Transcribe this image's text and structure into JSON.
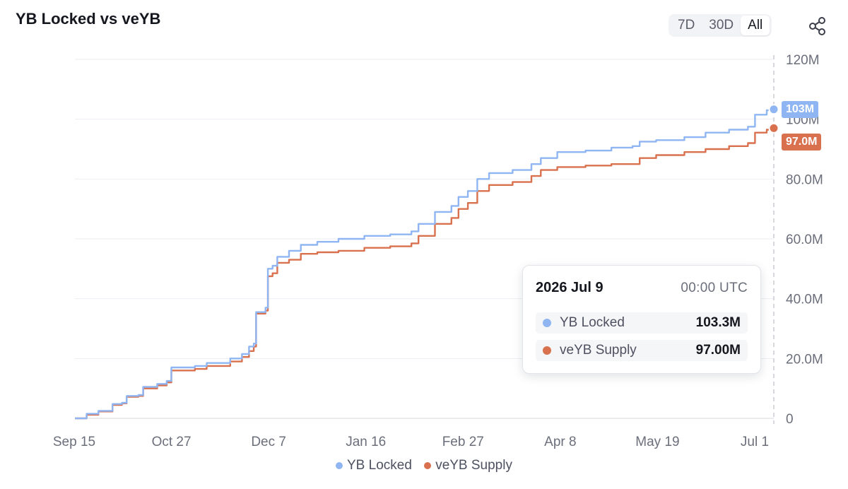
{
  "colors": {
    "yb_locked": "#8fb6f2",
    "veyb_supply": "#d9714f",
    "grid": "#eceef2",
    "axis": "#d7d9df"
  },
  "header": {
    "title": "YB Locked vs veYB"
  },
  "range_buttons": [
    {
      "label": "7D",
      "active": false
    },
    {
      "label": "30D",
      "active": false
    },
    {
      "label": "All",
      "active": true
    }
  ],
  "share": {
    "icon": "share-icon"
  },
  "tooltip": {
    "date": "2026 Jul 9",
    "time": "00:00  UTC",
    "rows": [
      {
        "name": "YB Locked",
        "value": "103.3M"
      },
      {
        "name": "veYB Supply",
        "value": "97.00M"
      }
    ]
  },
  "end_badges": {
    "yb_locked": "103M",
    "veyb_supply": "97.0M"
  },
  "legend": [
    "YB Locked",
    "veYB Supply"
  ],
  "chart_data": {
    "type": "line",
    "title": "YB Locked vs veYB",
    "xlabel": "",
    "ylabel": "",
    "x_tick_labels": [
      "Sep 15",
      "Oct 27",
      "Dec 7",
      "Jan 16",
      "Feb 27",
      "Apr 8",
      "May 19",
      "Jul 1"
    ],
    "y_tick_labels": [
      "0",
      "20.0M",
      "40.0M",
      "60.0M",
      "80.0M",
      "100M",
      "120M"
    ],
    "y_ticks": [
      0,
      20,
      40,
      60,
      80,
      100,
      120
    ],
    "ylim": [
      0,
      120
    ],
    "y_unit": "M",
    "x_range": [
      "2025-09-15",
      "2026-07-09"
    ],
    "legend_position": "bottom",
    "grid": true,
    "series": [
      {
        "name": "YB Locked",
        "points": [
          [
            "2025-09-15",
            0
          ],
          [
            "2025-09-20",
            1.5
          ],
          [
            "2025-09-25",
            2.5
          ],
          [
            "2025-10-01",
            4.8
          ],
          [
            "2025-10-05",
            5.2
          ],
          [
            "2025-10-07",
            7.5
          ],
          [
            "2025-10-12",
            7.8
          ],
          [
            "2025-10-14",
            10.5
          ],
          [
            "2025-10-20",
            11.5
          ],
          [
            "2025-10-24",
            12.5
          ],
          [
            "2025-10-26",
            17
          ],
          [
            "2025-11-05",
            17.5
          ],
          [
            "2025-11-10",
            18.5
          ],
          [
            "2025-11-20",
            20
          ],
          [
            "2025-11-25",
            21.5
          ],
          [
            "2025-11-28",
            24
          ],
          [
            "2025-11-30",
            25
          ],
          [
            "2025-12-01",
            35.5
          ],
          [
            "2025-12-05",
            37
          ],
          [
            "2025-12-06",
            50
          ],
          [
            "2025-12-08",
            51
          ],
          [
            "2025-12-10",
            54
          ],
          [
            "2025-12-15",
            56
          ],
          [
            "2025-12-20",
            58
          ],
          [
            "2025-12-27",
            59
          ],
          [
            "2026-01-05",
            60
          ],
          [
            "2026-01-16",
            61
          ],
          [
            "2026-01-27",
            61.5
          ],
          [
            "2026-02-05",
            62.5
          ],
          [
            "2026-02-08",
            65
          ],
          [
            "2026-02-15",
            69
          ],
          [
            "2026-02-22",
            71
          ],
          [
            "2026-02-25",
            74
          ],
          [
            "2026-03-01",
            76
          ],
          [
            "2026-03-05",
            80
          ],
          [
            "2026-03-10",
            82
          ],
          [
            "2026-03-20",
            83
          ],
          [
            "2026-03-28",
            85
          ],
          [
            "2026-04-01",
            87
          ],
          [
            "2026-04-08",
            89
          ],
          [
            "2026-04-20",
            89.5
          ],
          [
            "2026-05-01",
            90.5
          ],
          [
            "2026-05-10",
            91
          ],
          [
            "2026-05-13",
            92.5
          ],
          [
            "2026-05-20",
            93
          ],
          [
            "2026-06-01",
            94
          ],
          [
            "2026-06-10",
            95.5
          ],
          [
            "2026-06-20",
            96.5
          ],
          [
            "2026-06-28",
            97.5
          ],
          [
            "2026-07-01",
            101.5
          ],
          [
            "2026-07-06",
            103
          ],
          [
            "2026-07-09",
            103.3
          ]
        ]
      },
      {
        "name": "veYB Supply",
        "points": [
          [
            "2025-09-15",
            0
          ],
          [
            "2025-09-20",
            1.2
          ],
          [
            "2025-09-25",
            2.3
          ],
          [
            "2025-10-01",
            4.5
          ],
          [
            "2025-10-05",
            5.0
          ],
          [
            "2025-10-07",
            7.2
          ],
          [
            "2025-10-12",
            7.5
          ],
          [
            "2025-10-14",
            10.0
          ],
          [
            "2025-10-20",
            11.0
          ],
          [
            "2025-10-24",
            12.0
          ],
          [
            "2025-10-26",
            16
          ],
          [
            "2025-11-05",
            16.5
          ],
          [
            "2025-11-10",
            17.5
          ],
          [
            "2025-11-20",
            19
          ],
          [
            "2025-11-25",
            20.5
          ],
          [
            "2025-11-28",
            22.5
          ],
          [
            "2025-11-30",
            24
          ],
          [
            "2025-12-01",
            35
          ],
          [
            "2025-12-05",
            36
          ],
          [
            "2025-12-06",
            47.5
          ],
          [
            "2025-12-08",
            48.5
          ],
          [
            "2025-12-10",
            52
          ],
          [
            "2025-12-15",
            53
          ],
          [
            "2025-12-20",
            55
          ],
          [
            "2025-12-27",
            55.5
          ],
          [
            "2026-01-05",
            56
          ],
          [
            "2026-01-16",
            57
          ],
          [
            "2026-01-27",
            57.5
          ],
          [
            "2026-02-05",
            58.5
          ],
          [
            "2026-02-08",
            61
          ],
          [
            "2026-02-15",
            65
          ],
          [
            "2026-02-22",
            67
          ],
          [
            "2026-02-25",
            70
          ],
          [
            "2026-03-01",
            72
          ],
          [
            "2026-03-05",
            76
          ],
          [
            "2026-03-10",
            78
          ],
          [
            "2026-03-20",
            79
          ],
          [
            "2026-03-28",
            81
          ],
          [
            "2026-04-01",
            83
          ],
          [
            "2026-04-08",
            84
          ],
          [
            "2026-04-20",
            84.5
          ],
          [
            "2026-05-01",
            85
          ],
          [
            "2026-05-10",
            85
          ],
          [
            "2026-05-13",
            87
          ],
          [
            "2026-05-20",
            88
          ],
          [
            "2026-06-01",
            89
          ],
          [
            "2026-06-10",
            90
          ],
          [
            "2026-06-20",
            91
          ],
          [
            "2026-06-28",
            92
          ],
          [
            "2026-07-01",
            95.5
          ],
          [
            "2026-07-06",
            96.5
          ],
          [
            "2026-07-09",
            97.0
          ]
        ]
      }
    ]
  }
}
